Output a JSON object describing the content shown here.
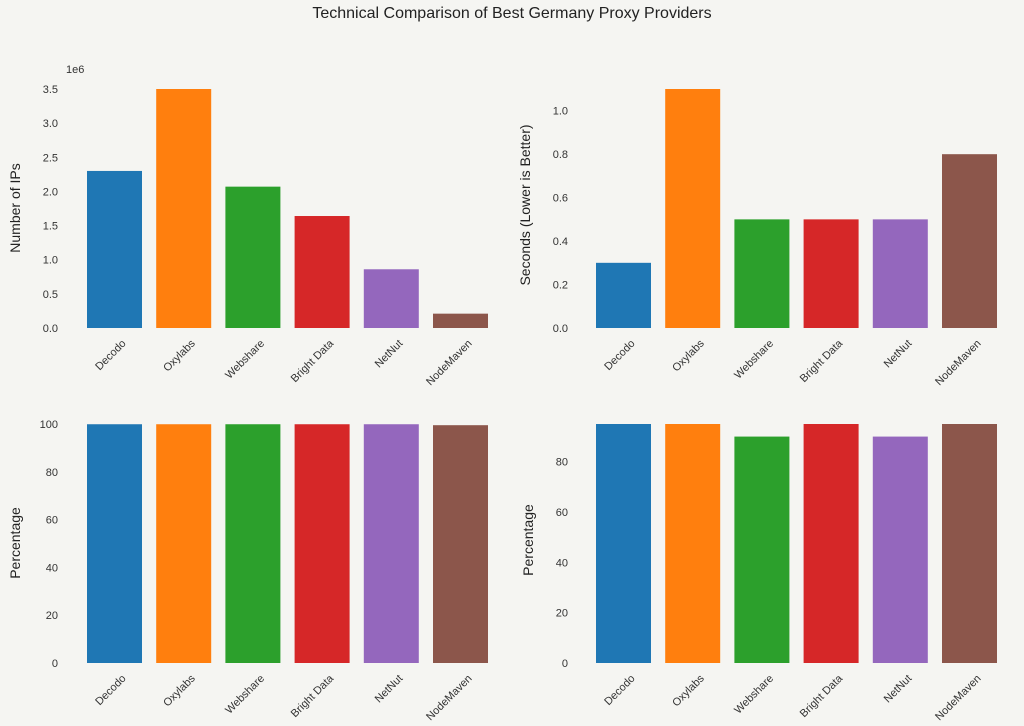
{
  "title": "Technical Comparison of Best Germany Proxy Providers",
  "colors": [
    "#1f77b4",
    "#ff7f0e",
    "#2ca02c",
    "#d62728",
    "#9467bd",
    "#8c564b"
  ],
  "chart_data": [
    {
      "type": "bar",
      "categories": [
        "Decodo",
        "Oxylabs",
        "Webshare",
        "Bright Data",
        "NetNut",
        "NodeMaven"
      ],
      "values": [
        2300000,
        3500000,
        2070000,
        1640000,
        860000,
        210000
      ],
      "ylabel": "Number of IPs",
      "ylim": [
        0,
        3500000
      ],
      "yticks": [
        0,
        500000,
        1000000,
        1500000,
        2000000,
        2500000,
        3000000,
        3500000
      ],
      "ytick_labels": [
        "0.0",
        "0.5",
        "1.0",
        "1.5",
        "2.0",
        "2.5",
        "3.0",
        "3.5"
      ],
      "offset_label": "1e6",
      "grid": false
    },
    {
      "type": "bar",
      "categories": [
        "Decodo",
        "Oxylabs",
        "Webshare",
        "Bright Data",
        "NetNut",
        "NodeMaven"
      ],
      "values": [
        0.3,
        1.1,
        0.5,
        0.5,
        0.5,
        0.8
      ],
      "ylabel": "Seconds (Lower is Better)",
      "ylim": [
        0,
        1.1
      ],
      "yticks": [
        0,
        0.2,
        0.4,
        0.6,
        0.8,
        1.0
      ],
      "ytick_labels": [
        "0.0",
        "0.2",
        "0.4",
        "0.6",
        "0.8",
        "1.0"
      ],
      "grid": false
    },
    {
      "type": "bar",
      "categories": [
        "Decodo",
        "Oxylabs",
        "Webshare",
        "Bright Data",
        "NetNut",
        "NodeMaven"
      ],
      "values": [
        99.9,
        99.9,
        99.9,
        99.9,
        99.9,
        99.5
      ],
      "ylabel": "Percentage",
      "ylim": [
        0,
        100
      ],
      "yticks": [
        0,
        20,
        40,
        60,
        80,
        100
      ],
      "ytick_labels": [
        "0",
        "20",
        "40",
        "60",
        "80",
        "100"
      ],
      "grid": false
    },
    {
      "type": "bar",
      "categories": [
        "Decodo",
        "Oxylabs",
        "Webshare",
        "Bright Data",
        "NetNut",
        "NodeMaven"
      ],
      "values": [
        95,
        95,
        90,
        95,
        90,
        95
      ],
      "ylabel": "Percentage",
      "ylim": [
        0,
        95
      ],
      "yticks": [
        0,
        20,
        40,
        60,
        80
      ],
      "ytick_labels": [
        "0",
        "20",
        "40",
        "60",
        "80"
      ],
      "grid": false
    }
  ]
}
